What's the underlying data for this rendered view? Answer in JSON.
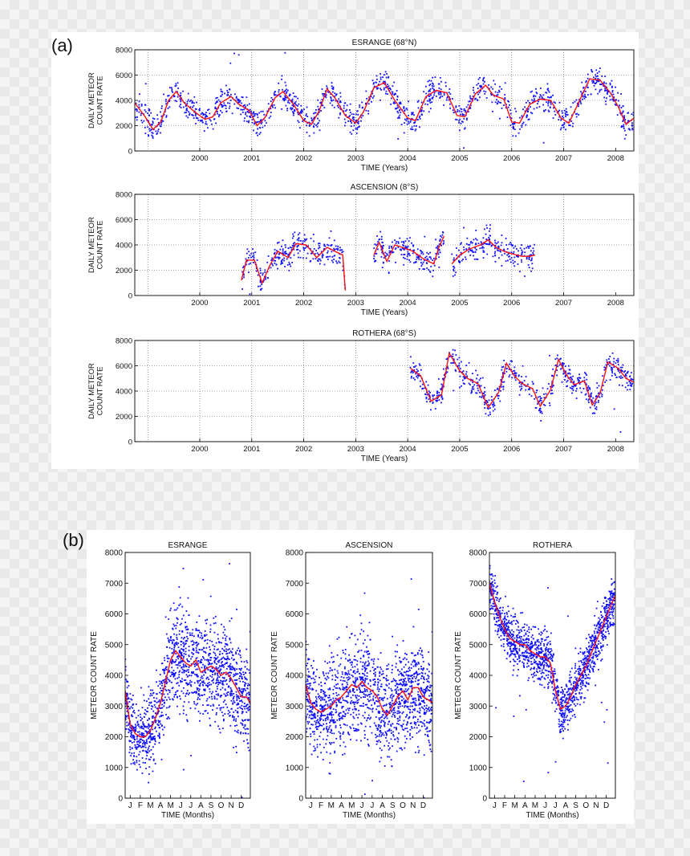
{
  "labels": {
    "a": "(a)",
    "b": "(b)"
  },
  "colors": {
    "points": "#1010ff",
    "fit": "#ff1010",
    "grid": "#555555",
    "axis": "#000000"
  },
  "chart_data": [
    {
      "type": "scatter",
      "panel": "a",
      "title": "ESRANGE (68°N)",
      "xlabel": "TIME (Years)",
      "ylabel": "DAILY METEOR COUNT RATE",
      "xlim": [
        1999.25,
        2008.85
      ],
      "ylim": [
        0,
        8000
      ],
      "xticks": [
        2000,
        2001,
        2002,
        2003,
        2004,
        2005,
        2006,
        2007,
        2008
      ],
      "yticks": [
        0,
        2000,
        4000,
        6000,
        8000
      ],
      "grid": true,
      "coverage": [
        [
          1999.25,
          2008.85
        ]
      ],
      "series": [
        {
          "kind": "fit",
          "x": [
            1999.25,
            1999.45,
            1999.6,
            1999.75,
            1999.9,
            2000.05,
            2000.2,
            2000.4,
            2000.6,
            2000.75,
            2000.9,
            2001.1,
            2001.25,
            2001.45,
            2001.6,
            2001.75,
            2001.95,
            2002.1,
            2002.3,
            2002.5,
            2002.65,
            2002.8,
            2002.95,
            2003.1,
            2003.3,
            2003.5,
            2003.65,
            2003.85,
            2004.05,
            2004.25,
            2004.5,
            2004.65,
            2004.85,
            2005.05,
            2005.25,
            2005.45,
            2005.6,
            2005.8,
            2006.0,
            2006.15,
            2006.35,
            2006.5,
            2006.65,
            2006.85,
            2007.05,
            2007.25,
            2007.45,
            2007.6,
            2007.75,
            2008.0,
            2008.2,
            2008.4,
            2008.55,
            2008.7,
            2008.85
          ],
          "y": [
            3800,
            2700,
            1700,
            2300,
            4000,
            4700,
            3800,
            3100,
            2500,
            2700,
            3800,
            4300,
            3700,
            3200,
            2000,
            2600,
            4200,
            4700,
            3700,
            2400,
            2100,
            3200,
            4900,
            4200,
            2800,
            2200,
            3100,
            5000,
            5400,
            4000,
            2600,
            2400,
            4300,
            4800,
            4600,
            2800,
            2700,
            4500,
            5200,
            4400,
            4100,
            2300,
            2200,
            3700,
            4100,
            4000,
            2600,
            2200,
            3500,
            5700,
            5600,
            4600,
            3500,
            2100,
            2600
          ]
        }
      ]
    },
    {
      "type": "scatter",
      "panel": "a",
      "title": "ASCENSION (8°S)",
      "xlabel": "TIME (Years)",
      "ylabel": "DAILY METEOR COUNT RATE",
      "xlim": [
        1999.25,
        2008.85
      ],
      "ylim": [
        0,
        8000
      ],
      "xticks": [
        2000,
        2001,
        2002,
        2003,
        2004,
        2005,
        2006,
        2007,
        2008
      ],
      "yticks": [
        0,
        2000,
        4000,
        6000,
        8000
      ],
      "grid": true,
      "coverage": [
        [
          2001.3,
          2003.3
        ],
        [
          2003.85,
          2006.95
        ],
        [
          2008.82,
          2008.85
        ]
      ],
      "series": [
        {
          "kind": "fit",
          "x": [
            2001.3,
            2001.4,
            2001.55,
            2001.7,
            2001.85,
            2002.0,
            2002.2,
            2002.35,
            2002.55,
            2002.75,
            2002.95,
            2003.1,
            2003.25,
            2003.3,
            null,
            2003.85,
            2003.95,
            2004.1,
            2004.25,
            2004.4,
            2004.6,
            2004.8,
            2005.0,
            2005.1,
            2005.2,
            null,
            2005.35,
            2005.5,
            2005.7,
            2005.9,
            2006.05,
            2006.2,
            2006.35,
            2006.5,
            2006.7,
            2006.85,
            2006.95
          ],
          "y": [
            1200,
            2800,
            2800,
            1000,
            2400,
            3500,
            3000,
            4100,
            4000,
            3000,
            3800,
            3500,
            3200,
            400,
            null,
            3200,
            4200,
            2700,
            4000,
            3800,
            3500,
            2900,
            2500,
            3800,
            4700,
            null,
            2500,
            3200,
            3700,
            4000,
            4400,
            3800,
            3500,
            3300,
            3100,
            3100,
            3200
          ]
        }
      ]
    },
    {
      "type": "scatter",
      "panel": "a",
      "title": "ROTHERA (68°S)",
      "xlabel": "TIME (Years)",
      "ylabel": "DAILY METEOR COUNT RATE",
      "xlim": [
        1999.25,
        2008.85
      ],
      "ylim": [
        0,
        8000
      ],
      "xticks": [
        2000,
        2001,
        2002,
        2003,
        2004,
        2005,
        2006,
        2007,
        2008
      ],
      "yticks": [
        0,
        2000,
        4000,
        6000,
        8000
      ],
      "grid": true,
      "coverage": [
        [
          2004.55,
          2008.85
        ]
      ],
      "series": [
        {
          "kind": "fit",
          "x": [
            2004.55,
            2004.75,
            2004.95,
            2005.15,
            2005.3,
            2005.5,
            2005.65,
            2005.85,
            2006.05,
            2006.25,
            2006.4,
            2006.55,
            2006.7,
            2006.9,
            2007.05,
            2007.25,
            2007.4,
            2007.55,
            2007.7,
            2007.9,
            2008.05,
            2008.2,
            2008.35,
            2008.55,
            2008.7,
            2008.85
          ],
          "y": [
            5800,
            5200,
            3200,
            3700,
            7000,
            5600,
            5000,
            4600,
            2700,
            3900,
            6200,
            5200,
            4600,
            4200,
            2800,
            4100,
            6500,
            5300,
            4500,
            4800,
            2900,
            3800,
            6300,
            5800,
            5000,
            4700
          ]
        }
      ]
    },
    {
      "type": "scatter",
      "panel": "b",
      "title": "ESRANGE",
      "xlabel": "TIME (Months)",
      "ylabel": "METEOR COUNT RATE",
      "xlim": [
        0,
        12.4
      ],
      "ylim": [
        0,
        8000
      ],
      "xticks": [
        {
          "v": 0.5,
          "label": "J"
        },
        {
          "v": 1.5,
          "label": "F"
        },
        {
          "v": 2.5,
          "label": "M"
        },
        {
          "v": 3.5,
          "label": "A"
        },
        {
          "v": 4.5,
          "label": "M"
        },
        {
          "v": 5.5,
          "label": "J"
        },
        {
          "v": 6.5,
          "label": "J"
        },
        {
          "v": 7.5,
          "label": "A"
        },
        {
          "v": 8.5,
          "label": "S"
        },
        {
          "v": 9.5,
          "label": "O"
        },
        {
          "v": 10.5,
          "label": "N"
        },
        {
          "v": 11.5,
          "label": "D"
        }
      ],
      "yticks": [
        0,
        1000,
        2000,
        3000,
        4000,
        5000,
        6000,
        7000,
        8000
      ],
      "grid": false,
      "coverage": [
        [
          0,
          12.4
        ]
      ],
      "series": [
        {
          "kind": "fit",
          "x": [
            0,
            0.5,
            1,
            1.5,
            2,
            2.5,
            3,
            3.5,
            4,
            4.5,
            5,
            5.5,
            6,
            6.5,
            7,
            7.5,
            8,
            8.5,
            9,
            9.5,
            10,
            10.5,
            11,
            11.5,
            12,
            12.4
          ],
          "y": [
            3500,
            2400,
            2100,
            2000,
            2000,
            2200,
            2600,
            3100,
            3800,
            4500,
            4800,
            4600,
            4400,
            4300,
            4500,
            4100,
            4200,
            4300,
            4200,
            4000,
            4100,
            3900,
            3600,
            3300,
            3300,
            3100
          ]
        }
      ]
    },
    {
      "type": "scatter",
      "panel": "b",
      "title": "ASCENSION",
      "xlabel": "TIME (Months)",
      "ylabel": "METEOR COUNT RATE",
      "xlim": [
        0,
        12.4
      ],
      "ylim": [
        0,
        8000
      ],
      "xticks": [
        {
          "v": 0.5,
          "label": "J"
        },
        {
          "v": 1.5,
          "label": "F"
        },
        {
          "v": 2.5,
          "label": "M"
        },
        {
          "v": 3.5,
          "label": "A"
        },
        {
          "v": 4.5,
          "label": "M"
        },
        {
          "v": 5.5,
          "label": "J"
        },
        {
          "v": 6.5,
          "label": "J"
        },
        {
          "v": 7.5,
          "label": "A"
        },
        {
          "v": 8.5,
          "label": "S"
        },
        {
          "v": 9.5,
          "label": "O"
        },
        {
          "v": 10.5,
          "label": "N"
        },
        {
          "v": 11.5,
          "label": "D"
        }
      ],
      "yticks": [
        0,
        1000,
        2000,
        3000,
        4000,
        5000,
        6000,
        7000,
        8000
      ],
      "grid": false,
      "coverage": [
        [
          0,
          12.4
        ]
      ],
      "series": [
        {
          "kind": "fit",
          "x": [
            0,
            0.5,
            1,
            1.5,
            2,
            2.5,
            3,
            3.5,
            4,
            4.5,
            5,
            5.5,
            6,
            6.5,
            7,
            7.5,
            8,
            8.5,
            9,
            9.5,
            10,
            10.5,
            11,
            11.5,
            12,
            12.4
          ],
          "y": [
            3700,
            3100,
            2900,
            2800,
            2900,
            3000,
            3200,
            3300,
            3500,
            3700,
            3600,
            3800,
            3600,
            3500,
            3300,
            2900,
            2700,
            3000,
            3300,
            3500,
            3200,
            3600,
            3600,
            3300,
            3200,
            3100
          ]
        }
      ]
    },
    {
      "type": "scatter",
      "panel": "b",
      "title": "ROTHERA",
      "xlabel": "TIME (Months)",
      "ylabel": "METEOR COUNT RATE",
      "xlim": [
        0,
        12.4
      ],
      "ylim": [
        0,
        8000
      ],
      "xticks": [
        {
          "v": 0.5,
          "label": "J"
        },
        {
          "v": 1.5,
          "label": "F"
        },
        {
          "v": 2.5,
          "label": "M"
        },
        {
          "v": 3.5,
          "label": "A"
        },
        {
          "v": 4.5,
          "label": "M"
        },
        {
          "v": 5.5,
          "label": "J"
        },
        {
          "v": 6.5,
          "label": "J"
        },
        {
          "v": 7.5,
          "label": "A"
        },
        {
          "v": 8.5,
          "label": "S"
        },
        {
          "v": 9.5,
          "label": "O"
        },
        {
          "v": 10.5,
          "label": "N"
        },
        {
          "v": 11.5,
          "label": "D"
        }
      ],
      "yticks": [
        0,
        1000,
        2000,
        3000,
        4000,
        5000,
        6000,
        7000,
        8000
      ],
      "grid": false,
      "coverage": [
        [
          0,
          12.4
        ]
      ],
      "series": [
        {
          "kind": "fit",
          "x": [
            0,
            0.5,
            1,
            1.5,
            2,
            2.5,
            3,
            3.5,
            4,
            4.5,
            5,
            5.5,
            6,
            6.5,
            7,
            7.5,
            8,
            8.5,
            9,
            9.5,
            10,
            10.5,
            11,
            11.5,
            12,
            12.4
          ],
          "y": [
            7000,
            6400,
            5900,
            5500,
            5200,
            5100,
            5000,
            5000,
            4800,
            4700,
            4600,
            4600,
            4400,
            3500,
            2900,
            3000,
            3300,
            3700,
            4000,
            4300,
            4700,
            5100,
            5500,
            5900,
            6300,
            6600
          ]
        }
      ]
    }
  ]
}
